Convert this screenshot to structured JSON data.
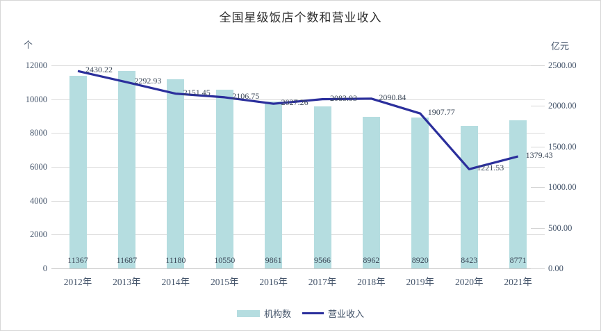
{
  "chart_data": {
    "type": "bar+line",
    "title": "全国星级饭店个数和营业收入",
    "categories": [
      "2012年",
      "2013年",
      "2014年",
      "2015年",
      "2016年",
      "2017年",
      "2018年",
      "2019年",
      "2020年",
      "2021年"
    ],
    "series": [
      {
        "name": "机构数",
        "type": "bar",
        "axis": "left",
        "values": [
          11367,
          11687,
          11180,
          10550,
          9861,
          9566,
          8962,
          8920,
          8423,
          8771
        ],
        "color": "#b5dde0"
      },
      {
        "name": "营业收入",
        "type": "line",
        "axis": "right",
        "values": [
          2430.22,
          2292.93,
          2151.45,
          2106.75,
          2027.26,
          2083.93,
          2090.84,
          1907.77,
          1221.53,
          1379.43
        ],
        "color": "#2b2f9c"
      }
    ],
    "left_axis": {
      "unit": "个",
      "min": 0,
      "max": 12000,
      "tick_step": 2000,
      "decimals": 0
    },
    "right_axis": {
      "unit": "亿元",
      "min": 0,
      "max": 2500,
      "tick_step": 500,
      "decimals": 2
    },
    "grid": true,
    "legend_position": "bottom"
  }
}
